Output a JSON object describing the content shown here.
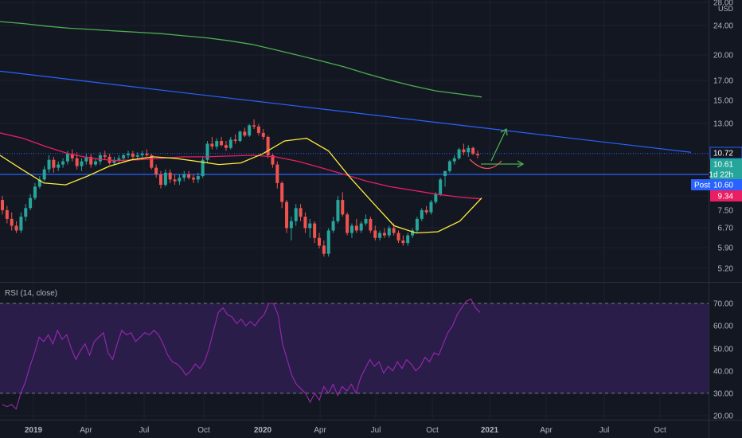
{
  "colors": {
    "background": "#131722",
    "grid": "#1e222d",
    "axis_text": "#b2b5be",
    "up": "#26a69a",
    "down": "#ef5350",
    "sma_long": "#4caf50",
    "sma_mid": "#e91e63",
    "sma_short": "#ffeb3b",
    "trendline": "#2962ff",
    "rsi_line": "#9c27b0",
    "rsi_band": "#2a1d4a",
    "arrows": "#4caf50"
  },
  "chart_data": [
    {
      "type": "candlestick",
      "title": "",
      "y_scale": "log",
      "currency_label": "USD",
      "y_ticks": [
        "28.00",
        "24.00",
        "20.00",
        "17.00",
        "15.00",
        "13.00",
        "10.72",
        "10.61",
        "9.34",
        "7.50",
        "6.70",
        "5.90",
        "5.20"
      ],
      "x_ticks": [
        "2019",
        "Apr",
        "Jul",
        "Oct",
        "2020",
        "Apr",
        "Jul",
        "Oct",
        "2021",
        "Apr",
        "Jul",
        "Oct"
      ],
      "price_badges": [
        {
          "name": "last",
          "text": "10.72",
          "color": "#2962ff",
          "outline": true
        },
        {
          "name": "close",
          "text": "10.61",
          "color": "#26a69a",
          "outline": false
        },
        {
          "name": "countdown",
          "text": "1d 22h",
          "color": "#26a69a",
          "outline": false
        },
        {
          "name": "post",
          "prefix": "Post",
          "text": "10.60",
          "color": "#2962ff",
          "outline": false
        },
        {
          "name": "ma",
          "text": "9.34",
          "color": "#e91e63",
          "outline": false
        }
      ],
      "horizontal_levels": [
        10.72,
        9.4
      ],
      "ohlc": [
        [
          8.0,
          8.2,
          7.3,
          7.5
        ],
        [
          7.5,
          7.7,
          6.9,
          7.1
        ],
        [
          7.1,
          7.4,
          6.6,
          6.8
        ],
        [
          6.8,
          7.0,
          6.5,
          6.6
        ],
        [
          6.6,
          7.4,
          6.5,
          7.2
        ],
        [
          7.2,
          7.8,
          7.0,
          7.6
        ],
        [
          7.6,
          8.3,
          7.5,
          8.1
        ],
        [
          8.1,
          8.9,
          8.0,
          8.7
        ],
        [
          8.7,
          9.3,
          8.6,
          9.1
        ],
        [
          9.1,
          9.9,
          9.0,
          9.7
        ],
        [
          9.7,
          10.6,
          9.5,
          10.3
        ],
        [
          10.3,
          10.5,
          9.5,
          9.8
        ],
        [
          9.8,
          10.2,
          9.6,
          10.0
        ],
        [
          10.0,
          10.4,
          9.8,
          10.2
        ],
        [
          10.2,
          10.9,
          10.0,
          10.7
        ],
        [
          10.7,
          11.0,
          10.2,
          10.4
        ],
        [
          10.4,
          10.8,
          9.7,
          9.9
        ],
        [
          9.9,
          10.4,
          9.6,
          10.2
        ],
        [
          10.2,
          10.7,
          10.0,
          10.5
        ],
        [
          10.5,
          10.7,
          9.8,
          10.0
        ],
        [
          10.0,
          10.4,
          9.9,
          10.2
        ],
        [
          10.2,
          10.8,
          10.0,
          10.6
        ],
        [
          10.6,
          10.9,
          10.3,
          10.5
        ],
        [
          10.5,
          10.7,
          10.0,
          10.1
        ],
        [
          10.1,
          10.5,
          10.0,
          10.3
        ],
        [
          10.3,
          10.6,
          10.1,
          10.4
        ],
        [
          10.4,
          10.7,
          10.2,
          10.6
        ],
        [
          10.6,
          10.9,
          10.4,
          10.7
        ],
        [
          10.7,
          10.9,
          10.3,
          10.5
        ],
        [
          10.5,
          10.8,
          10.3,
          10.6
        ],
        [
          10.6,
          10.9,
          10.4,
          10.7
        ],
        [
          10.7,
          11.0,
          10.5,
          10.6
        ],
        [
          10.6,
          10.7,
          9.7,
          9.8
        ],
        [
          9.8,
          10.0,
          9.2,
          9.4
        ],
        [
          9.4,
          9.6,
          8.6,
          8.8
        ],
        [
          8.8,
          9.7,
          8.7,
          9.5
        ],
        [
          9.5,
          9.7,
          8.9,
          9.1
        ],
        [
          9.1,
          9.4,
          8.8,
          9.0
        ],
        [
          9.0,
          9.4,
          8.8,
          9.2
        ],
        [
          9.2,
          9.6,
          9.0,
          9.4
        ],
        [
          9.4,
          9.6,
          9.1,
          9.2
        ],
        [
          9.2,
          9.4,
          8.9,
          9.1
        ],
        [
          9.1,
          9.5,
          8.9,
          9.3
        ],
        [
          9.3,
          10.5,
          9.2,
          10.3
        ],
        [
          10.3,
          11.6,
          10.1,
          11.4
        ],
        [
          11.4,
          11.9,
          11.0,
          11.2
        ],
        [
          11.2,
          11.8,
          11.0,
          11.6
        ],
        [
          11.6,
          11.9,
          11.2,
          11.3
        ],
        [
          11.3,
          11.6,
          10.9,
          11.1
        ],
        [
          11.1,
          11.9,
          11.0,
          11.7
        ],
        [
          11.7,
          12.1,
          11.4,
          11.6
        ],
        [
          11.6,
          12.4,
          11.5,
          12.3
        ],
        [
          12.3,
          12.6,
          11.9,
          12.0
        ],
        [
          12.0,
          12.9,
          11.9,
          12.8
        ],
        [
          12.8,
          13.3,
          12.5,
          12.7
        ],
        [
          12.7,
          12.9,
          12.0,
          12.2
        ],
        [
          12.2,
          12.5,
          11.7,
          11.9
        ],
        [
          11.9,
          12.0,
          10.4,
          10.6
        ],
        [
          10.6,
          10.7,
          9.8,
          10.0
        ],
        [
          10.0,
          10.2,
          8.6,
          8.9
        ],
        [
          8.9,
          9.0,
          7.6,
          7.9
        ],
        [
          7.9,
          8.0,
          6.5,
          6.7
        ],
        [
          6.7,
          7.2,
          6.2,
          7.0
        ],
        [
          7.0,
          7.8,
          6.8,
          7.6
        ],
        [
          7.6,
          7.8,
          7.0,
          7.2
        ],
        [
          7.2,
          7.4,
          6.5,
          6.7
        ],
        [
          6.7,
          7.1,
          6.3,
          6.9
        ],
        [
          6.9,
          7.0,
          6.1,
          6.3
        ],
        [
          6.3,
          6.5,
          5.9,
          6.0
        ],
        [
          6.0,
          6.2,
          5.6,
          5.7
        ],
        [
          5.7,
          6.7,
          5.6,
          6.6
        ],
        [
          6.6,
          7.2,
          6.5,
          7.0
        ],
        [
          7.0,
          8.2,
          6.9,
          8.0
        ],
        [
          8.0,
          8.4,
          7.2,
          7.3
        ],
        [
          7.3,
          7.4,
          6.4,
          6.5
        ],
        [
          6.5,
          6.9,
          6.3,
          6.8
        ],
        [
          6.8,
          7.1,
          6.5,
          6.6
        ],
        [
          6.6,
          7.0,
          6.5,
          6.9
        ],
        [
          6.9,
          7.3,
          6.8,
          7.1
        ],
        [
          7.1,
          7.2,
          6.5,
          6.6
        ],
        [
          6.6,
          6.8,
          6.2,
          6.3
        ],
        [
          6.3,
          6.6,
          6.2,
          6.5
        ],
        [
          6.5,
          6.7,
          6.3,
          6.4
        ],
        [
          6.4,
          6.8,
          6.3,
          6.7
        ],
        [
          6.7,
          6.9,
          6.4,
          6.5
        ],
        [
          6.5,
          6.6,
          6.1,
          6.2
        ],
        [
          6.2,
          6.4,
          6.0,
          6.1
        ],
        [
          6.1,
          6.5,
          6.0,
          6.4
        ],
        [
          6.4,
          6.7,
          6.3,
          6.6
        ],
        [
          6.6,
          7.2,
          6.5,
          7.1
        ],
        [
          7.1,
          7.6,
          7.0,
          7.5
        ],
        [
          7.5,
          7.7,
          7.3,
          7.4
        ],
        [
          7.4,
          8.0,
          7.3,
          7.9
        ],
        [
          7.9,
          8.4,
          7.8,
          8.3
        ],
        [
          8.3,
          9.2,
          8.2,
          9.1
        ],
        [
          9.3,
          9.6,
          8.7,
          9.6
        ],
        [
          9.6,
          10.3,
          9.5,
          10.2
        ],
        [
          10.2,
          10.6,
          10.0,
          10.4
        ],
        [
          10.4,
          11.1,
          10.3,
          11.0
        ],
        [
          11.0,
          11.4,
          10.6,
          10.8
        ],
        [
          10.8,
          11.3,
          10.5,
          11.1
        ],
        [
          11.1,
          11.2,
          10.6,
          10.7
        ],
        [
          10.7,
          10.9,
          10.4,
          10.61
        ]
      ],
      "series": [
        {
          "kind": "sma",
          "color_key": "sma_long",
          "values": [
            24.6,
            24.3,
            23.9,
            23.6,
            23.4,
            23.2,
            23.0,
            22.8,
            22.5,
            22.2,
            21.8,
            21.3,
            20.6,
            19.9,
            19.2,
            18.5,
            17.7,
            17.0,
            16.4,
            15.9,
            15.6,
            15.3
          ]
        },
        {
          "kind": "sma",
          "color_key": "sma_mid",
          "values": [
            12.2,
            11.8,
            11.2,
            10.7,
            10.4,
            10.25,
            10.3,
            10.4,
            10.5,
            10.5,
            10.55,
            10.6,
            10.5,
            10.2,
            9.8,
            9.4,
            9.0,
            8.7,
            8.5,
            8.3,
            8.15,
            8.05
          ]
        },
        {
          "kind": "sma",
          "color_key": "sma_short",
          "values": [
            10.6,
            9.7,
            8.9,
            8.8,
            9.3,
            9.9,
            10.3,
            10.5,
            10.4,
            10.2,
            10.0,
            10.1,
            10.7,
            11.6,
            11.8,
            10.9,
            9.2,
            7.9,
            6.8,
            6.5,
            6.55,
            7.0,
            8.1
          ]
        },
        {
          "kind": "trendline",
          "color_key": "trendline",
          "values": [
            18.0,
            10.8
          ]
        }
      ]
    },
    {
      "type": "line",
      "title": "RSI (14, close)",
      "y_ticks": [
        "70.00",
        "60.00",
        "50.00",
        "40.00",
        "30.00",
        "20.00"
      ],
      "ylim": [
        20,
        70
      ],
      "band": [
        30,
        70
      ],
      "values": [
        25,
        24,
        25,
        23,
        30,
        35,
        42,
        48,
        55,
        53,
        56,
        52,
        58,
        54,
        56,
        50,
        45,
        49,
        52,
        47,
        53,
        55,
        57,
        48,
        45,
        52,
        58,
        56,
        57,
        53,
        55,
        57,
        56,
        58,
        56,
        52,
        47,
        44,
        43,
        41,
        38,
        40,
        43,
        41,
        44,
        50,
        58,
        66,
        68,
        65,
        64,
        61,
        63,
        60,
        62,
        60,
        63,
        65,
        70,
        70,
        65,
        52,
        45,
        38,
        34,
        32,
        30,
        26,
        30,
        27,
        33,
        30,
        34,
        29,
        33,
        31,
        34,
        30,
        37,
        41,
        45,
        42,
        44,
        39,
        42,
        40,
        44,
        41,
        45,
        43,
        40,
        42,
        46,
        44,
        48,
        47,
        52,
        57,
        60,
        65,
        68,
        71,
        72,
        68,
        66
      ]
    }
  ]
}
